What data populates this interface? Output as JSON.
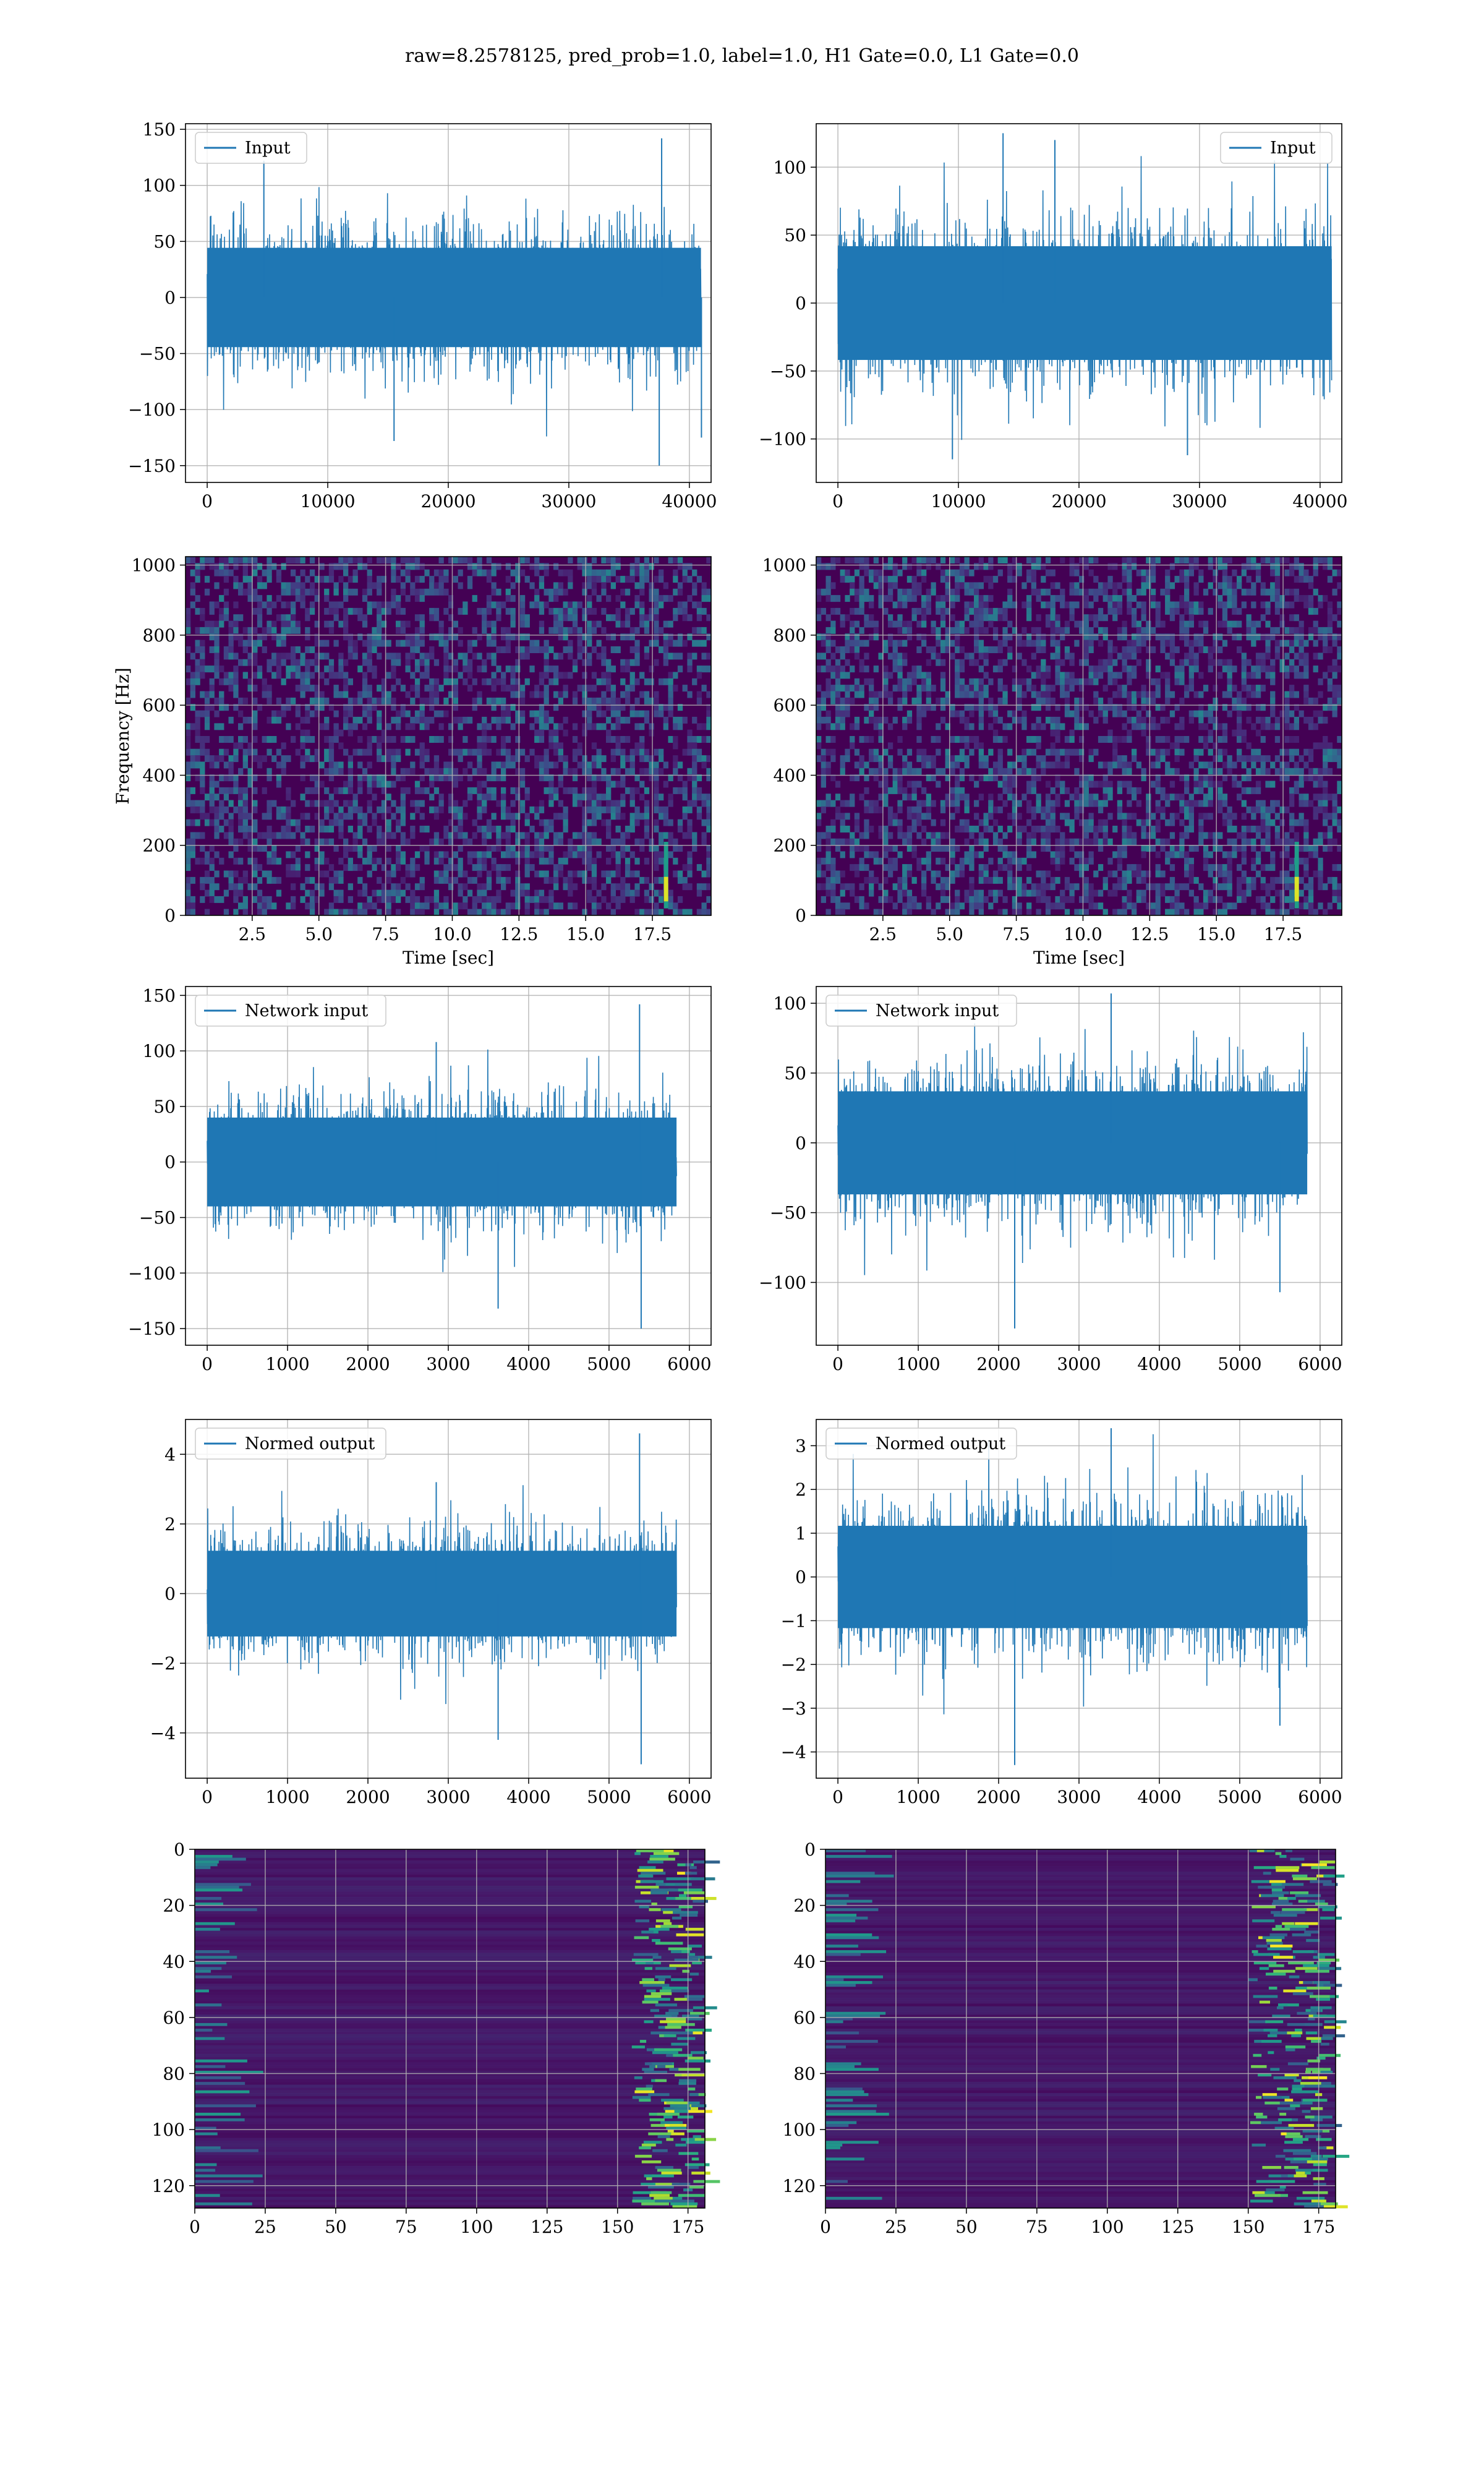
{
  "suptitle": "raw=8.2578125, pred_prob=1.0, label=1.0, H1 Gate=0.0, L1 Gate=0.0",
  "colors": {
    "line": "#1f77b4",
    "grid": "#b0b0b0",
    "viridis_low": "#440154"
  },
  "chart_data": [
    {
      "id": "h1-input",
      "type": "line",
      "legend": "Input",
      "legend_loc": "upper left",
      "x_range": [
        0,
        40960
      ],
      "ylim": [
        -165,
        155
      ],
      "xticks": [
        0,
        10000,
        20000,
        30000,
        40000
      ],
      "xtick_labels": [
        "0",
        "10000",
        "20000",
        "30000",
        "40000"
      ],
      "yticks": [
        -150,
        -100,
        -50,
        0,
        50,
        100,
        150
      ],
      "ytick_labels": [
        "−150",
        "−100",
        "−50",
        "0",
        "50",
        "100",
        "150"
      ],
      "xlabel": "",
      "ylabel": "",
      "grid": true,
      "envelope": {
        "typical": [
          -72,
          72
        ],
        "spikes": [
          [
            37500,
            -150
          ],
          [
            37700,
            142
          ],
          [
            4700,
            122
          ],
          [
            15500,
            -128
          ],
          [
            41000,
            -125
          ]
        ]
      }
    },
    {
      "id": "l1-input",
      "type": "line",
      "legend": "Input",
      "legend_loc": "upper right",
      "x_range": [
        0,
        40960
      ],
      "ylim": [
        -132,
        132
      ],
      "xticks": [
        0,
        10000,
        20000,
        30000,
        40000
      ],
      "xtick_labels": [
        "0",
        "10000",
        "20000",
        "30000",
        "40000"
      ],
      "yticks": [
        -100,
        -50,
        0,
        50,
        100
      ],
      "ytick_labels": [
        "−100",
        "−50",
        "0",
        "50",
        "100"
      ],
      "xlabel": "",
      "ylabel": "",
      "grid": true,
      "envelope": {
        "typical": [
          -68,
          68
        ],
        "spikes": [
          [
            13700,
            125
          ],
          [
            9500,
            -115
          ],
          [
            29000,
            -112
          ],
          [
            18000,
            120
          ]
        ]
      }
    },
    {
      "id": "h1-spectrogram",
      "type": "heatmap",
      "colormap": "viridis",
      "xlim": [
        0,
        19.7
      ],
      "ylim": [
        0,
        1024
      ],
      "xticks": [
        2.5,
        5.0,
        7.5,
        10.0,
        12.5,
        15.0,
        17.5
      ],
      "xtick_labels": [
        "2.5",
        "5.0",
        "7.5",
        "10.0",
        "12.5",
        "15.0",
        "17.5"
      ],
      "yticks": [
        0,
        200,
        400,
        600,
        800,
        1000
      ],
      "ytick_labels": [
        "0",
        "200",
        "400",
        "600",
        "800",
        "1000"
      ],
      "xlabel": "Time [sec]",
      "ylabel": "Frequency [Hz]",
      "grid": true,
      "chirp_time": 18.0
    },
    {
      "id": "l1-spectrogram",
      "type": "heatmap",
      "colormap": "viridis",
      "xlim": [
        0,
        19.7
      ],
      "ylim": [
        0,
        1024
      ],
      "xticks": [
        2.5,
        5.0,
        7.5,
        10.0,
        12.5,
        15.0,
        17.5
      ],
      "xtick_labels": [
        "2.5",
        "5.0",
        "7.5",
        "10.0",
        "12.5",
        "15.0",
        "17.5"
      ],
      "yticks": [
        0,
        200,
        400,
        600,
        800,
        1000
      ],
      "ytick_labels": [
        "0",
        "200",
        "400",
        "600",
        "800",
        "1000"
      ],
      "xlabel": "Time [sec]",
      "ylabel": "",
      "grid": true,
      "chirp_time": 18.0
    },
    {
      "id": "h1-network-input",
      "type": "line",
      "legend": "Network input",
      "legend_loc": "upper left",
      "x_range": [
        0,
        5840
      ],
      "ylim": [
        -165,
        158
      ],
      "xticks": [
        0,
        1000,
        2000,
        3000,
        4000,
        5000,
        6000
      ],
      "xtick_labels": [
        "0",
        "1000",
        "2000",
        "3000",
        "4000",
        "5000",
        "6000"
      ],
      "yticks": [
        -150,
        -100,
        -50,
        0,
        50,
        100,
        150
      ],
      "ytick_labels": [
        "−150",
        "−100",
        "−50",
        "0",
        "50",
        "100",
        "150"
      ],
      "xlabel": "",
      "ylabel": "",
      "grid": true,
      "envelope": {
        "typical": [
          -65,
          65
        ],
        "spikes": [
          [
            5380,
            142
          ],
          [
            5400,
            -150
          ],
          [
            3620,
            -132
          ],
          [
            2850,
            108
          ]
        ]
      }
    },
    {
      "id": "l1-network-input",
      "type": "line",
      "legend": "Network input",
      "legend_loc": "upper left",
      "x_range": [
        0,
        5840
      ],
      "ylim": [
        -145,
        112
      ],
      "xticks": [
        0,
        1000,
        2000,
        3000,
        4000,
        5000,
        6000
      ],
      "xtick_labels": [
        "0",
        "1000",
        "2000",
        "3000",
        "4000",
        "5000",
        "6000"
      ],
      "yticks": [
        -100,
        -50,
        0,
        50,
        100
      ],
      "ytick_labels": [
        "−100",
        "−50",
        "0",
        "50",
        "100"
      ],
      "xlabel": "",
      "ylabel": "",
      "grid": true,
      "envelope": {
        "typical": [
          -60,
          60
        ],
        "spikes": [
          [
            2200,
            -133
          ],
          [
            3400,
            107
          ],
          [
            5500,
            -107
          ]
        ]
      }
    },
    {
      "id": "h1-normed-output",
      "type": "line",
      "legend": "Normed output",
      "legend_loc": "upper left",
      "x_range": [
        0,
        5840
      ],
      "ylim": [
        -5.3,
        5.0
      ],
      "xticks": [
        0,
        1000,
        2000,
        3000,
        4000,
        5000,
        6000
      ],
      "xtick_labels": [
        "0",
        "1000",
        "2000",
        "3000",
        "4000",
        "5000",
        "6000"
      ],
      "yticks": [
        -4,
        -2,
        0,
        2,
        4
      ],
      "ytick_labels": [
        "−4",
        "−2",
        "0",
        "2",
        "4"
      ],
      "xlabel": "",
      "ylabel": "",
      "grid": true,
      "envelope": {
        "typical": [
          -2.0,
          2.0
        ],
        "spikes": [
          [
            5380,
            4.6
          ],
          [
            5400,
            -4.9
          ],
          [
            3620,
            -4.2
          ],
          [
            2850,
            3.2
          ]
        ]
      }
    },
    {
      "id": "l1-normed-output",
      "type": "line",
      "legend": "Normed output",
      "legend_loc": "upper left",
      "x_range": [
        0,
        5840
      ],
      "ylim": [
        -4.6,
        3.6
      ],
      "xticks": [
        0,
        1000,
        2000,
        3000,
        4000,
        5000,
        6000
      ],
      "xtick_labels": [
        "0",
        "1000",
        "2000",
        "3000",
        "4000",
        "5000",
        "6000"
      ],
      "yticks": [
        -4,
        -3,
        -2,
        -1,
        0,
        1,
        2,
        3
      ],
      "ytick_labels": [
        "−4",
        "−3",
        "−2",
        "−1",
        "0",
        "1",
        "2",
        "3"
      ],
      "xlabel": "",
      "ylabel": "",
      "grid": true,
      "envelope": {
        "typical": [
          -1.9,
          1.9
        ],
        "spikes": [
          [
            2200,
            -4.3
          ],
          [
            3400,
            3.4
          ],
          [
            5500,
            -3.4
          ]
        ]
      }
    },
    {
      "id": "h1-feature-map",
      "type": "heatmap",
      "colormap": "viridis",
      "xlim": [
        0,
        181
      ],
      "ylim": [
        128,
        0
      ],
      "xticks": [
        0,
        25,
        50,
        75,
        100,
        125,
        150,
        175
      ],
      "xtick_labels": [
        "0",
        "25",
        "50",
        "75",
        "100",
        "125",
        "150",
        "175"
      ],
      "yticks": [
        0,
        20,
        40,
        60,
        80,
        100,
        120
      ],
      "ytick_labels": [
        "0",
        "20",
        "40",
        "60",
        "80",
        "100",
        "120"
      ],
      "xlabel": "",
      "ylabel": "",
      "grid": true,
      "bright_columns_from": 155
    },
    {
      "id": "l1-feature-map",
      "type": "heatmap",
      "colormap": "viridis",
      "xlim": [
        0,
        181
      ],
      "ylim": [
        128,
        0
      ],
      "xticks": [
        0,
        25,
        50,
        75,
        100,
        125,
        150,
        175
      ],
      "xtick_labels": [
        "0",
        "25",
        "50",
        "75",
        "100",
        "125",
        "150",
        "175"
      ],
      "yticks": [
        0,
        20,
        40,
        60,
        80,
        100,
        120
      ],
      "ytick_labels": [
        "0",
        "20",
        "40",
        "60",
        "80",
        "100",
        "120"
      ],
      "xlabel": "",
      "ylabel": "",
      "grid": true,
      "bright_columns_from": 150
    }
  ]
}
